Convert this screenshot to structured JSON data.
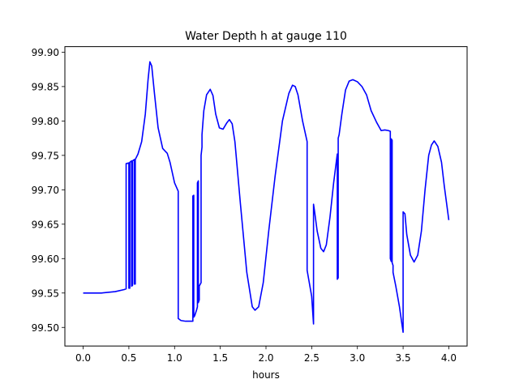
{
  "chart_data": {
    "type": "line",
    "title": "Water Depth h at gauge 110",
    "xlabel": "hours",
    "ylabel": "",
    "xlim": [
      -0.2,
      4.2
    ],
    "ylim": [
      99.473,
      99.908
    ],
    "xticks": [
      0.0,
      0.5,
      1.0,
      1.5,
      2.0,
      2.5,
      3.0,
      3.5,
      4.0
    ],
    "xtick_labels": [
      "0.0",
      "0.5",
      "1.0",
      "1.5",
      "2.0",
      "2.5",
      "3.0",
      "3.5",
      "4.0"
    ],
    "yticks": [
      99.5,
      99.55,
      99.6,
      99.65,
      99.7,
      99.75,
      99.8,
      99.85,
      99.9
    ],
    "ytick_labels": [
      "99.50",
      "99.55",
      "99.60",
      "99.65",
      "99.70",
      "99.75",
      "99.80",
      "99.85",
      "99.90"
    ],
    "grid": false,
    "legend": "none",
    "series": [
      {
        "color": "#0000ff",
        "x": [
          0.0,
          0.2,
          0.35,
          0.45,
          0.47,
          0.47,
          0.5,
          0.5,
          0.51,
          0.51,
          0.53,
          0.53,
          0.54,
          0.54,
          0.56,
          0.56,
          0.57,
          0.57,
          0.6,
          0.64,
          0.68,
          0.71,
          0.73,
          0.75,
          0.78,
          0.82,
          0.87,
          0.92,
          0.95,
          1.0,
          1.04,
          1.04,
          1.07,
          1.12,
          1.2,
          1.2,
          1.21,
          1.21,
          1.22,
          1.24,
          1.25,
          1.25,
          1.26,
          1.26,
          1.27,
          1.27,
          1.29,
          1.29,
          1.3,
          1.3,
          1.32,
          1.35,
          1.39,
          1.42,
          1.45,
          1.49,
          1.53,
          1.57,
          1.6,
          1.63,
          1.66,
          1.72,
          1.79,
          1.85,
          1.88,
          1.92,
          1.97,
          2.03,
          2.1,
          2.18,
          2.25,
          2.29,
          2.32,
          2.35,
          2.4,
          2.45,
          2.45,
          2.5,
          2.52,
          2.52,
          2.53,
          2.56,
          2.6,
          2.63,
          2.66,
          2.7,
          2.74,
          2.78,
          2.78,
          2.79,
          2.79,
          2.8,
          2.83,
          2.87,
          2.91,
          2.95,
          3.0,
          3.05,
          3.1,
          3.15,
          3.21,
          3.26,
          3.3,
          3.34,
          3.36,
          3.36,
          3.37,
          3.37,
          3.38,
          3.38,
          3.39,
          3.39,
          3.42,
          3.46,
          3.49,
          3.5,
          3.5,
          3.52,
          3.54,
          3.58,
          3.62,
          3.66,
          3.7,
          3.74,
          3.78,
          3.81,
          3.84,
          3.88,
          3.92,
          3.95,
          4.0
        ],
        "y": [
          99.55,
          99.55,
          99.552,
          99.555,
          99.556,
          99.738,
          99.739,
          99.557,
          99.557,
          99.74,
          99.742,
          99.56,
          99.561,
          99.742,
          99.744,
          99.563,
          99.563,
          99.744,
          99.752,
          99.77,
          99.81,
          99.86,
          99.886,
          99.88,
          99.84,
          99.79,
          99.76,
          99.753,
          99.74,
          99.71,
          99.698,
          99.513,
          99.51,
          99.509,
          99.509,
          99.691,
          99.692,
          99.515,
          99.517,
          99.525,
          99.53,
          99.71,
          99.713,
          99.536,
          99.54,
          99.56,
          99.565,
          99.75,
          99.762,
          99.78,
          99.815,
          99.838,
          99.846,
          99.837,
          99.81,
          99.79,
          99.788,
          99.797,
          99.802,
          99.796,
          99.77,
          99.68,
          99.58,
          99.53,
          99.525,
          99.53,
          99.565,
          99.64,
          99.72,
          99.8,
          99.84,
          99.852,
          99.85,
          99.838,
          99.8,
          99.77,
          99.583,
          99.545,
          99.505,
          99.679,
          99.67,
          99.64,
          99.615,
          99.61,
          99.62,
          99.66,
          99.71,
          99.752,
          99.57,
          99.572,
          99.775,
          99.78,
          99.81,
          99.845,
          99.858,
          99.86,
          99.857,
          99.85,
          99.838,
          99.815,
          99.798,
          99.786,
          99.787,
          99.786,
          99.785,
          99.6,
          99.596,
          99.774,
          99.772,
          99.594,
          99.59,
          99.58,
          99.56,
          99.53,
          99.502,
          99.493,
          99.668,
          99.665,
          99.635,
          99.605,
          99.595,
          99.605,
          99.64,
          99.7,
          99.75,
          99.765,
          99.771,
          99.763,
          99.74,
          99.706,
          99.656
        ]
      }
    ]
  }
}
